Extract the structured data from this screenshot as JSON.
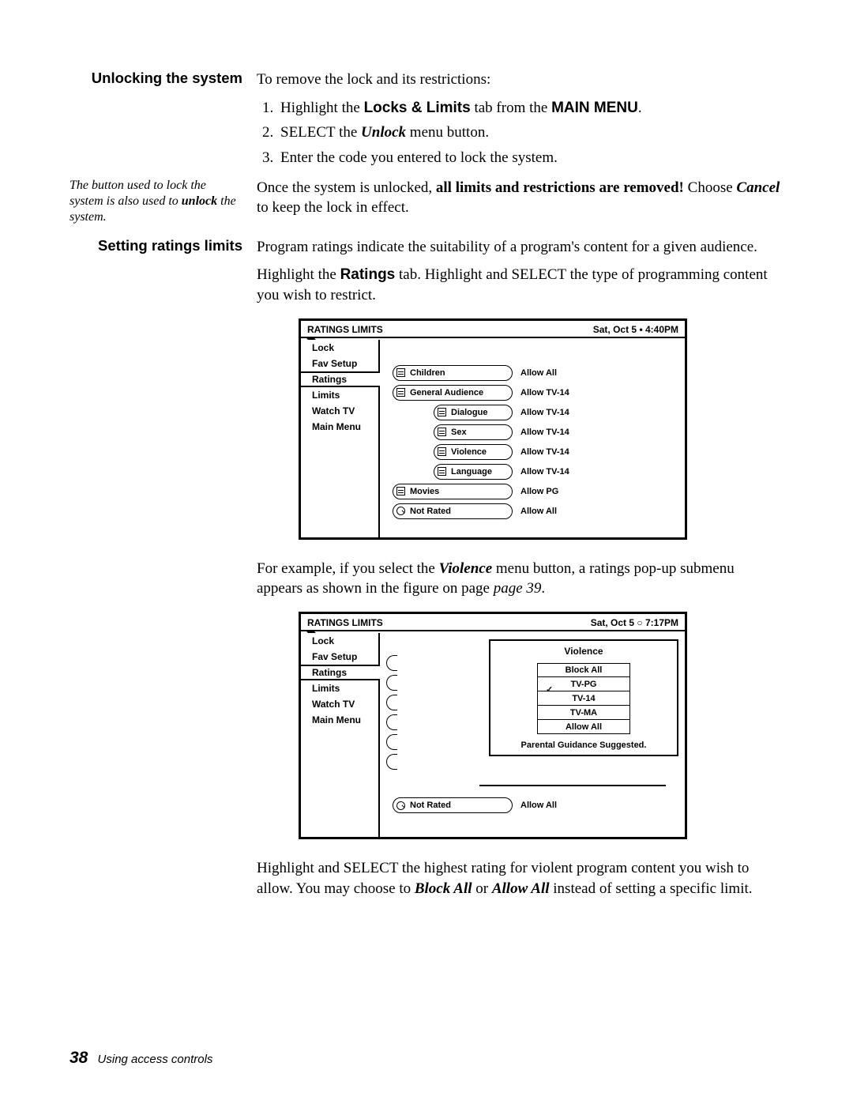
{
  "section1": {
    "heading": "Unlocking the system",
    "intro": "To remove the lock and its restrictions:",
    "step1_a": "Highlight the ",
    "step1_b": "Locks & Limits",
    "step1_c": " tab from the ",
    "step1_d": "MAIN MENU",
    "step1_e": ".",
    "step2_a": "SELECT the ",
    "step2_b": "Unlock",
    "step2_c": " menu button.",
    "step3": "Enter the code you entered to lock the system.",
    "sidenote_a": "The button used to lock the system is also used to ",
    "sidenote_b": "unlock",
    "sidenote_c": " the system.",
    "p1_a": "Once the system is unlocked, ",
    "p1_b": "all limits and restrictions are removed!",
    "p1_c": " Choose ",
    "p1_d": "Cancel",
    "p1_e": " to keep the lock in effect."
  },
  "section2": {
    "heading": "Setting ratings limits",
    "p1": "Program ratings indicate the suitability of a program's content for a given audience.",
    "p2_a": "Highlight the ",
    "p2_b": "Ratings",
    "p2_c": " tab. Highlight and ",
    "p2_d": "SELECT",
    "p2_e": " the type of programming content you wish to restrict.",
    "p3_a": "For example, if you select the ",
    "p3_b": "Violence",
    "p3_c": " menu button, a ratings pop-up submenu appears as shown in the figure on page ",
    "p3_d": "page 39",
    "p3_e": ".",
    "p4_a": "Highlight and ",
    "p4_b": "SELECT",
    "p4_c": " the highest rating for violent program content you wish to allow. You may choose to ",
    "p4_d": "Block All",
    "p4_e": " or ",
    "p4_f": "Allow All",
    "p4_g": " instead of setting a specific limit."
  },
  "ui1": {
    "title": "RATINGS LIMITS",
    "datetime": "Sat, Oct 5 •  4:40PM",
    "tabs": [
      "Lock",
      "Fav Setup",
      "Ratings",
      "Limits",
      "Watch TV",
      "Main Menu"
    ],
    "active_tab": "Ratings",
    "rows": [
      {
        "label": "Children",
        "val": "Allow All",
        "shift": 0
      },
      {
        "label": "General Audience",
        "val": "Allow TV-14",
        "shift": 0
      },
      {
        "label": "Dialogue",
        "val": "Allow TV-14",
        "shift": 2
      },
      {
        "label": "Sex",
        "val": "Allow TV-14",
        "shift": 2
      },
      {
        "label": "Violence",
        "val": "Allow TV-14",
        "shift": 2
      },
      {
        "label": "Language",
        "val": "Allow TV-14",
        "shift": 2
      },
      {
        "label": "Movies",
        "val": "Allow PG",
        "shift": 0
      },
      {
        "label": "Not Rated",
        "val": "Allow All",
        "shift": 0,
        "icon": "o"
      }
    ]
  },
  "ui2": {
    "title": "RATINGS LIMITS",
    "datetime": "Sat, Oct 5 ○  7:17PM",
    "tabs": [
      "Lock",
      "Fav Setup",
      "Ratings",
      "Limits",
      "Watch TV",
      "Main Menu"
    ],
    "active_tab": "Ratings",
    "popup": {
      "title": "Violence",
      "options": [
        "Block All",
        "TV-PG",
        "TV-14",
        "TV-MA",
        "Allow All"
      ],
      "selected": "TV-PG",
      "desc": "Parental Guidance Suggested."
    },
    "below": {
      "label": "Not Rated",
      "val": "Allow All"
    }
  },
  "footer": {
    "page": "38",
    "title": "Using access controls"
  }
}
